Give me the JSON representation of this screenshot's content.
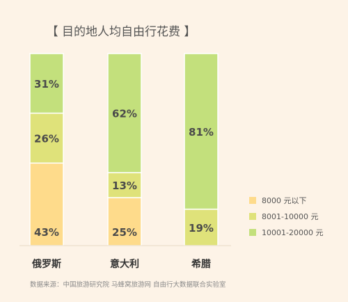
{
  "chart_data": {
    "type": "bar",
    "stacked": true,
    "title": "【 目的地人均自由行花费 】",
    "categories": [
      "俄罗斯",
      "意大利",
      "希腊"
    ],
    "series": [
      {
        "name": "8000 元以下",
        "color": "#fedb8b",
        "values": [
          43,
          25,
          0
        ]
      },
      {
        "name": "8001-10000 元",
        "color": "#dfe27a",
        "values": [
          26,
          13,
          19
        ]
      },
      {
        "name": "10001-20000 元",
        "color": "#c3e07c",
        "values": [
          31,
          62,
          81
        ]
      }
    ],
    "value_suffix": "%",
    "ylim": [
      0,
      100
    ],
    "legend_position": "right",
    "grid": false,
    "source": "数据来源：中国旅游研究院 马蜂窝旅游网 自由行大数据联合实验室"
  }
}
